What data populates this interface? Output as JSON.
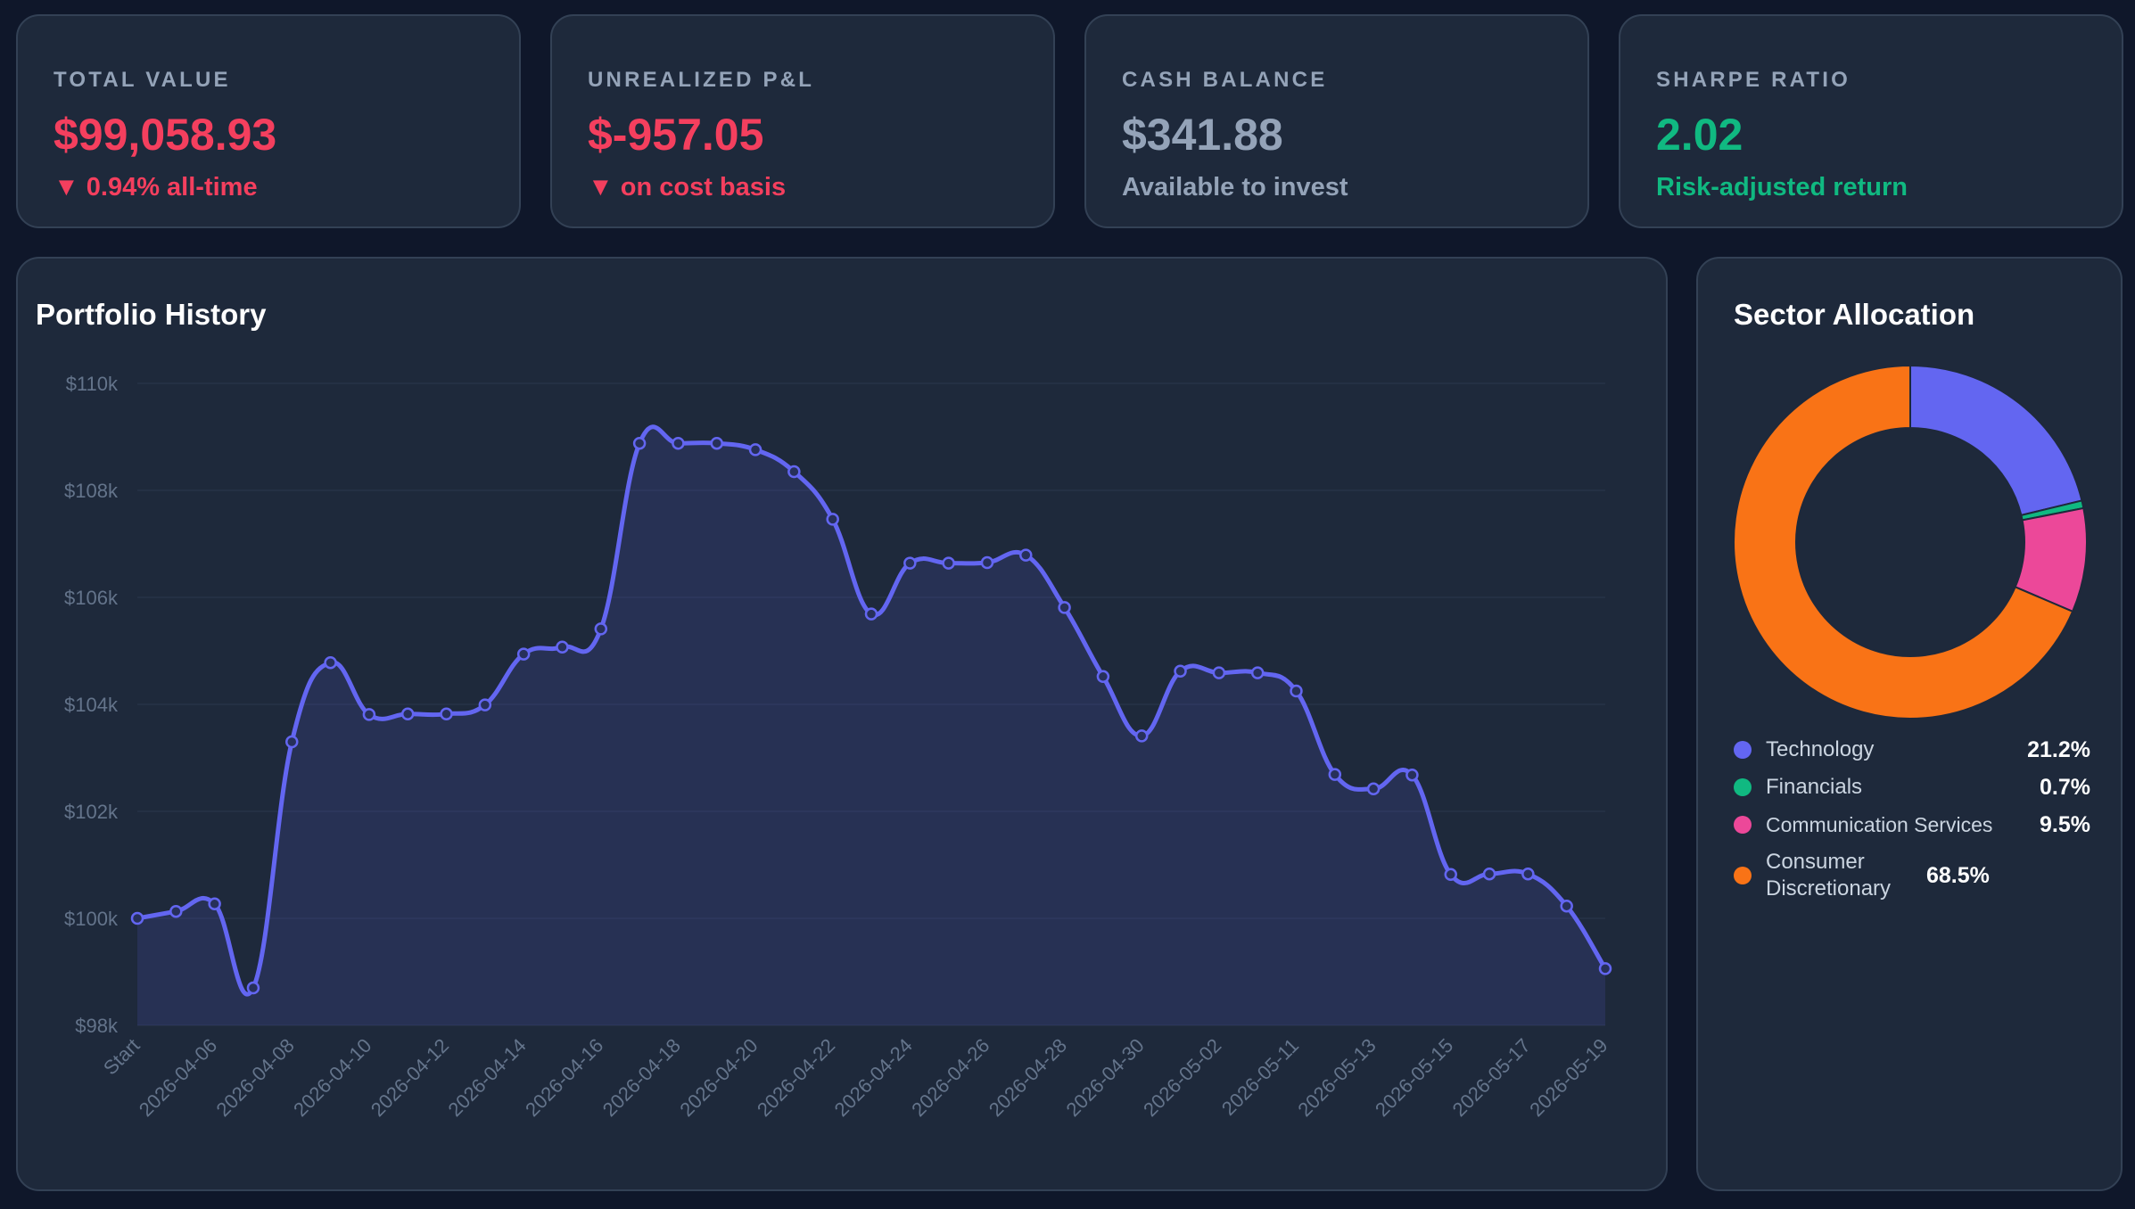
{
  "stats": [
    {
      "label": "TOTAL VALUE",
      "value": "$99,058.93",
      "sub_icon": "▼",
      "sub": "0.94% all-time",
      "color": "#f43f5e"
    },
    {
      "label": "UNREALIZED P&L",
      "value": "$-957.05",
      "sub_icon": "▼",
      "sub": "on cost basis",
      "color": "#f43f5e"
    },
    {
      "label": "CASH BALANCE",
      "value": "$341.88",
      "sub_icon": "",
      "sub": "Available to invest",
      "color": "#94a3b8"
    },
    {
      "label": "SHARPE RATIO",
      "value": "2.02",
      "sub_icon": "",
      "sub": "Risk-adjusted return",
      "color": "#10b981"
    }
  ],
  "history": {
    "title": "Portfolio History"
  },
  "allocation": {
    "title": "Sector Allocation"
  },
  "chart_data": [
    {
      "type": "area",
      "title": "Portfolio History",
      "color": "#6366f1",
      "ylim": [
        98000,
        110000
      ],
      "y_ticks": [
        "$110k",
        "$108k",
        "$106k",
        "$104k",
        "$102k",
        "$100k",
        "$98k"
      ],
      "y_tick_values": [
        110000,
        108000,
        106000,
        104000,
        102000,
        100000,
        98000
      ],
      "x_tick_labels": [
        "Start",
        "2026-04-06",
        "2026-04-08",
        "2026-04-10",
        "2026-04-12",
        "2026-04-14",
        "2026-04-16",
        "2026-04-18",
        "2026-04-20",
        "2026-04-22",
        "2026-04-24",
        "2026-04-26",
        "2026-04-28",
        "2026-04-30",
        "2026-05-02",
        "2026-05-11",
        "2026-05-13",
        "2026-05-15",
        "2026-05-17",
        "2026-05-19"
      ],
      "values": [
        100000,
        100130,
        100270,
        98700,
        103300,
        104780,
        103810,
        103820,
        103820,
        103990,
        104940,
        105070,
        105410,
        108880,
        108880,
        108880,
        108760,
        108350,
        107460,
        105690,
        106640,
        106640,
        106650,
        106790,
        105810,
        104520,
        103410,
        104620,
        104590,
        104590,
        104250,
        102690,
        102420,
        102680,
        100820,
        100830,
        100830,
        100230,
        99060
      ],
      "grid": true
    },
    {
      "type": "pie",
      "title": "Sector Allocation",
      "donut": true,
      "legend": "bottom",
      "slices": [
        {
          "label": "Technology",
          "value": 21.2,
          "display": "21.2%",
          "color": "#6366f1"
        },
        {
          "label": "Financials",
          "value": 0.7,
          "display": "0.7%",
          "color": "#10b981"
        },
        {
          "label": "Communication Services",
          "value": 9.5,
          "display": "9.5%",
          "color": "#ec4899"
        },
        {
          "label": "Consumer Discretionary",
          "value": 68.5,
          "display": "68.5%",
          "color": "#f97316"
        }
      ]
    }
  ]
}
